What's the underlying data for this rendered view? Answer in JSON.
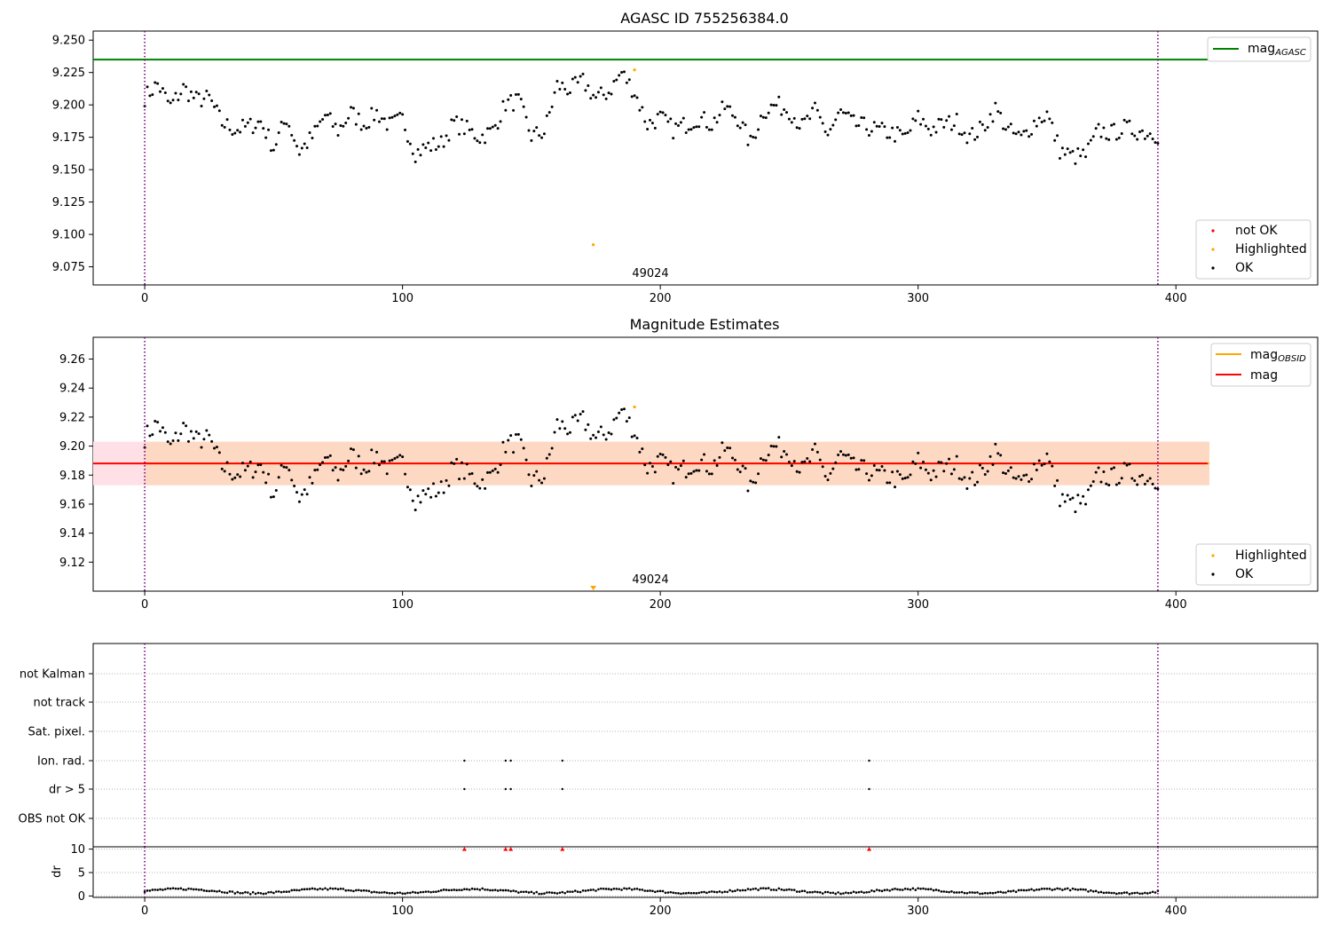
{
  "figure": {
    "title_top": "AGASC ID 755256384.0",
    "title_middle": "Magnitude Estimates",
    "obsid_label": "49024"
  },
  "colors": {
    "agasc_line": "#008000",
    "mag_line": "#ff0000",
    "mag_obsid": "#ffa500",
    "highlighted": "#ffa500",
    "not_ok": "#ff0000",
    "ok": "#000000",
    "obs_boundary": "#800080",
    "band_outer": "#ffe0e6",
    "band_inner": "#fdd9c4"
  },
  "legends": {
    "top_lines": [
      {
        "label": "mag",
        "sub": "AGASC"
      }
    ],
    "top_points": [
      "not OK",
      "Highlighted",
      "OK"
    ],
    "mid_lines": [
      {
        "label": "mag",
        "sub": "OBSID"
      },
      {
        "label": "mag",
        "sub": ""
      }
    ],
    "mid_points": [
      "Highlighted",
      "OK"
    ]
  },
  "chart_data": [
    {
      "type": "scatter",
      "title": "AGASC ID 755256384.0",
      "xlim": [
        -20,
        455
      ],
      "ylim": [
        9.061,
        9.257
      ],
      "xticks": [
        "0",
        "100",
        "200",
        "300",
        "400"
      ],
      "yticks": [
        "9.075",
        "9.100",
        "9.125",
        "9.150",
        "9.175",
        "9.200",
        "9.225",
        "9.250"
      ],
      "mag_agasc": 9.235,
      "obs_boundaries": [
        0,
        393
      ],
      "annotation": {
        "text": "49024",
        "x": 196
      },
      "points_sampled_every_5": [
        9.206,
        9.216,
        9.199,
        9.213,
        9.204,
        9.205,
        9.186,
        9.181,
        9.183,
        9.187,
        9.167,
        9.19,
        9.164,
        9.175,
        9.192,
        9.18,
        9.194,
        9.185,
        9.194,
        9.184,
        9.189,
        9.163,
        9.168,
        9.17,
        9.186,
        9.181,
        9.175,
        9.18,
        9.201,
        9.203,
        9.176,
        9.179,
        9.215,
        9.212,
        9.218,
        9.205,
        9.21,
        9.225,
        9.21,
        9.185,
        9.19,
        9.181,
        9.185,
        9.19,
        9.185,
        9.198,
        9.19,
        9.17,
        9.195,
        9.2,
        9.196,
        9.183,
        9.195,
        9.178,
        9.194,
        9.185,
        9.183,
        9.18,
        9.178,
        9.175,
        9.19,
        9.181,
        9.185,
        9.187,
        9.175,
        9.182,
        9.197,
        9.18,
        9.174,
        9.186,
        9.193,
        9.165,
        9.16,
        9.161,
        9.18,
        9.178,
        9.182,
        9.18,
        9.178
      ],
      "highlighted": [
        {
          "x": 174,
          "y": 9.092
        },
        {
          "x": 190,
          "y": 9.227
        }
      ],
      "not_ok": []
    },
    {
      "type": "scatter",
      "title": "Magnitude Estimates",
      "xlim": [
        -20,
        455
      ],
      "ylim": [
        9.1,
        9.275
      ],
      "xticks": [
        "0",
        "100",
        "200",
        "300",
        "400"
      ],
      "yticks": [
        "9.12",
        "9.14",
        "9.16",
        "9.18",
        "9.20",
        "9.22",
        "9.24",
        "9.26"
      ],
      "mag": 9.188,
      "mag_band": [
        9.173,
        9.203
      ],
      "mag_obsid": 9.188,
      "obs_boundaries": [
        0,
        393
      ],
      "annotation": {
        "text": "49024",
        "x": 196
      },
      "highlighted": [
        {
          "x": 174,
          "y": 9.102
        },
        {
          "x": 190,
          "y": 9.227
        }
      ]
    },
    {
      "type": "scatter",
      "title": "",
      "xlim": [
        -20,
        455
      ],
      "categories": [
        "not Kalman",
        "not track",
        "Sat. pixel.",
        "Ion. rad.",
        "dr > 5",
        "OBS not OK"
      ],
      "flag_x": {
        "Ion. rad.": [
          124,
          140,
          142,
          162,
          281
        ],
        "dr > 5": [
          124,
          140,
          142,
          162,
          281
        ]
      },
      "obs_boundaries": [
        0,
        393
      ]
    },
    {
      "type": "scatter",
      "title": "",
      "ylabel": "dr",
      "xlim": [
        -20,
        455
      ],
      "ylim": [
        -0.3,
        10.5
      ],
      "xticks": [
        "0",
        "100",
        "200",
        "300",
        "400"
      ],
      "yticks": [
        "0",
        "5",
        "10"
      ],
      "clipped_above_10": [
        124,
        140,
        142,
        162,
        281
      ],
      "typical_dr": [
        0.5,
        1.6
      ],
      "obs_boundaries": [
        0,
        393
      ]
    }
  ]
}
